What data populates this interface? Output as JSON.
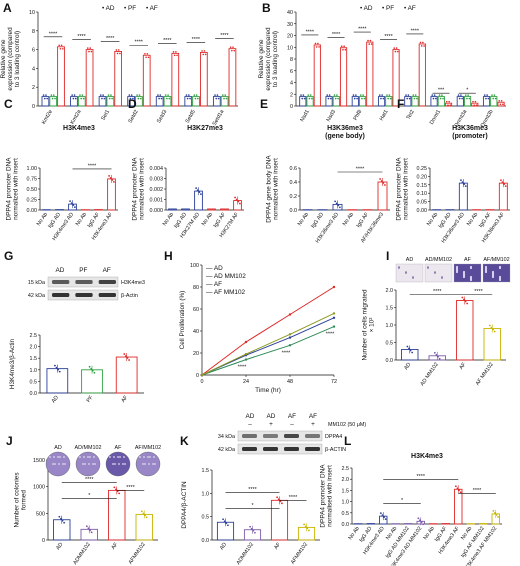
{
  "colors": {
    "AD": "#2a3f9a",
    "PF": "#2ea13f",
    "AF": "#e02828",
    "ADMM": "#7a5aa8",
    "AFMM": "#c9b400",
    "ADMM_G": "#2e8b57",
    "AFMM_G": "#8a9a20"
  },
  "legend": {
    "dot": "•",
    "items": [
      "AD",
      "PF",
      "AF"
    ]
  },
  "panels": [
    {
      "id": "A",
      "letter": "A",
      "type": "grouped_bar",
      "ylabel": "Relative gene expression (compared to 3 loading control)",
      "yticks": [
        "0",
        "2",
        "4",
        "6",
        "8",
        "10"
      ],
      "ymax": 10,
      "categories": [
        "Kmt2e",
        "Kmt2a",
        "Set1",
        "Setd2",
        "Setd3",
        "Setd5",
        "Setd1a"
      ],
      "series": [
        {
          "name": "AD",
          "color": "AD",
          "values": [
            1,
            1,
            1,
            1,
            1,
            1,
            1
          ]
        },
        {
          "name": "PF",
          "color": "PF",
          "values": [
            1,
            1,
            1,
            1,
            1,
            1,
            1
          ]
        },
        {
          "name": "AF",
          "color": "AF",
          "values": [
            6.3,
            6.0,
            5.8,
            5.4,
            5.6,
            5.7,
            6.1
          ]
        }
      ],
      "sig": [
        "****",
        "****",
        "****",
        "****",
        "****",
        "****",
        "****"
      ]
    },
    {
      "id": "B",
      "letter": "B",
      "type": "grouped_bar",
      "ylabel": "Relative gene expression (compared to 3 loading control)",
      "yticks": [
        "0",
        "2",
        "4",
        "6",
        "8",
        "10",
        "20",
        "30",
        "40"
      ],
      "ymax": 10,
      "categories": [
        "Nsd1",
        "Nsd3",
        "Phf8",
        "Hat1",
        "Tet2",
        "Dnmt1",
        "Dnmt3a",
        "Dnmt3b"
      ],
      "series": [
        {
          "name": "AD",
          "color": "AD",
          "values": [
            1,
            1,
            1,
            1,
            1,
            1,
            1,
            1
          ]
        },
        {
          "name": "PF",
          "color": "PF",
          "values": [
            1,
            1,
            1,
            1,
            1,
            1,
            1,
            1
          ]
        },
        {
          "name": "AF",
          "color": "AF",
          "values": [
            6.5,
            6.2,
            6.8,
            6.0,
            6.6,
            0.3,
            0.3,
            0.4
          ]
        }
      ],
      "sig": [
        "****",
        "****",
        "****",
        "****",
        "****",
        "***",
        "*",
        ""
      ]
    },
    {
      "id": "C",
      "letter": "C",
      "type": "bar",
      "title": "H3K4me3",
      "ylabel": "DPPA4 promoter DNA normalized with insert",
      "yticks": [
        "0.00",
        "0.25",
        "0.50",
        "0.75",
        "1.00"
      ],
      "ymax": 1,
      "categories": [
        "No Ab",
        "IgG AD",
        "H3K4me3 AD",
        "No Ab",
        "IgG AF",
        "H3K4me3 AF"
      ],
      "colors": [
        "AD",
        "AD",
        "AD",
        "AF",
        "AF",
        "AF"
      ],
      "values": [
        0.005,
        0.01,
        0.14,
        0.005,
        0.01,
        0.74
      ],
      "sig": "****"
    },
    {
      "id": "D",
      "letter": "D",
      "type": "bar",
      "title": "H3K27me3",
      "ylabel": "DPPA4 promoter DNA normalized with insert",
      "yticks": [
        "0.000",
        "0.001",
        "0.002",
        "0.003",
        "0.004"
      ],
      "ymax": 0.004,
      "categories": [
        "No Ab",
        "IgG AD",
        "H3K27M AD",
        "No Ab",
        "IgG AF",
        "H3K27M AF"
      ],
      "colors": [
        "AD",
        "AD",
        "AD",
        "AF",
        "AF",
        "AF"
      ],
      "values": [
        0.0001,
        0.0001,
        0.0018,
        0.0001,
        0.0001,
        0.0009
      ]
    },
    {
      "id": "E",
      "letter": "E",
      "type": "bar",
      "title": "H3K36me3 (gene body)",
      "ylabel": "DPPA4 gene body DNA normalized with insert",
      "yticks": [
        "0.0",
        "0.2",
        "0.4",
        "0.6"
      ],
      "ymax": 0.6,
      "categories": [
        "No Ab",
        "IgG AD",
        "H3K36me3 AD",
        "No Ab",
        "IgG AF",
        "AF/H3K36me3"
      ],
      "colors": [
        "AD",
        "AD",
        "AD",
        "AF",
        "AF",
        "AF"
      ],
      "values": [
        0.002,
        0.004,
        0.08,
        0.002,
        0.004,
        0.4
      ],
      "sig": "****"
    },
    {
      "id": "F",
      "letter": "F",
      "type": "bar",
      "title": "H3K36me3 (promoter)",
      "ylabel": "DPPA4 promoter DNA normalized with insert",
      "yticks": [
        "0.00",
        "0.05",
        "0.10",
        "0.15",
        "0.20",
        "0.25"
      ],
      "ymax": 0.25,
      "categories": [
        "No Ab",
        "IgG AD",
        "H3K36me3 AD",
        "No Ab",
        "IgG AF",
        "H3K36me3 AF"
      ],
      "colors": [
        "AD",
        "AD",
        "AD",
        "AF",
        "AF",
        "AF"
      ],
      "values": [
        0.001,
        0.002,
        0.16,
        0.001,
        0.002,
        0.16
      ]
    },
    {
      "id": "G",
      "letter": "G",
      "type": "bar",
      "ylabel": "H3K4me3/β-Actin",
      "yticks": [
        "0.0",
        "0.5",
        "1.0",
        "1.5",
        "2.0",
        "2.5"
      ],
      "ymax": 2.5,
      "categories": [
        "AD",
        "PF",
        "AF"
      ],
      "colors": [
        "AD",
        "PF",
        "AF"
      ],
      "values": [
        1.05,
        1.0,
        1.55
      ],
      "blot": {
        "lanes": [
          "AD",
          "PF",
          "AF"
        ],
        "bands": [
          {
            "kda": "15 kDa",
            "name": "H3K4me3"
          },
          {
            "kda": "42 kDa",
            "name": "β-Actin"
          }
        ]
      }
    },
    {
      "id": "H",
      "letter": "H",
      "type": "line",
      "xlabel": "Time (hr)",
      "ylabel": "Cell Proliferation (%)",
      "xticks": [
        "0",
        "24",
        "48",
        "72"
      ],
      "x": [
        0,
        24,
        48,
        72
      ],
      "yticks": [
        "0",
        "20",
        "40",
        "60",
        "80",
        "100"
      ],
      "ymax": 100,
      "series": [
        {
          "name": "AD",
          "color": "AD",
          "values": [
            0,
            18,
            34,
            52
          ]
        },
        {
          "name": "AD MM102",
          "color": "ADMM_G",
          "values": [
            0,
            14,
            27,
            44
          ]
        },
        {
          "name": "AF",
          "color": "AF",
          "values": [
            0,
            30,
            55,
            80
          ]
        },
        {
          "name": "AF MM102",
          "color": "AFMM_G",
          "values": [
            0,
            19,
            37,
            56
          ]
        }
      ],
      "sig": [
        "****",
        "****",
        "****"
      ]
    },
    {
      "id": "I",
      "letter": "I",
      "type": "bar",
      "ylabel": "Number of cells migrated × 10²",
      "yticks": [
        "0.0",
        "0.5",
        "1.0",
        "1.5",
        "2.0"
      ],
      "ymax": 2,
      "categories": [
        "AD",
        "AD MM102",
        "AF",
        "AF MM102"
      ],
      "colors": [
        "AD",
        "ADMM",
        "AF",
        "AFMM"
      ],
      "values": [
        0.3,
        0.12,
        1.7,
        0.9
      ],
      "sig": [
        "****",
        "****"
      ],
      "images": [
        "AD",
        "AD/MM102",
        "AF",
        "AF/MM102"
      ]
    },
    {
      "id": "J",
      "letter": "J",
      "type": "bar",
      "ylabel": "Number of colonies formed",
      "yticks": [
        "0",
        "500",
        "1000",
        "1500"
      ],
      "ymax": 1500,
      "categories": [
        "AD",
        "ADMM102",
        "AF",
        "AFMM102"
      ],
      "colors": [
        "AD",
        "ADMM",
        "AF",
        "AFMM"
      ],
      "values": [
        380,
        200,
        930,
        480
      ],
      "sig": [
        "*",
        "****",
        "****"
      ],
      "images": [
        "AD",
        "AD/MM102",
        "AF",
        "AF/MM102"
      ]
    },
    {
      "id": "K",
      "letter": "K",
      "type": "bar",
      "ylabel": "DPPA4/β-ACTIN",
      "yticks": [
        "0.0",
        "0.5",
        "1.0",
        "1.5"
      ],
      "ymax": 1.5,
      "categories": [
        "AD",
        "ADMM102",
        "AF",
        "AFMM102"
      ],
      "colors": [
        "AD",
        "ADMM",
        "AF",
        "AFMM"
      ],
      "values": [
        0.38,
        0.22,
        0.85,
        0.27
      ],
      "sig": [
        "*",
        "****",
        "****"
      ],
      "blot": {
        "lanes": [
          "AD",
          "AD",
          "AF",
          "AF"
        ],
        "treat": [
          "–",
          "+",
          "–",
          "+"
        ],
        "treat_label": "MM102 (50 μM)",
        "bands": [
          {
            "kda": "34 kDa",
            "name": "DPPA4"
          },
          {
            "kda": "42 kDa",
            "name": "β-ACTIN"
          }
        ]
      }
    },
    {
      "id": "L",
      "letter": "L",
      "type": "bar",
      "title": "H3K4me3",
      "ylabel": "DPPA4 promoter DNA normalised with insert",
      "yticks": [
        "0.0",
        "0.5",
        "1.0",
        "1.5",
        "2.0",
        "2.5"
      ],
      "ymax": 2.5,
      "categories": [
        "No Ab",
        "IgG AD",
        "H3K4me3 AD",
        "No Ab",
        "IgG AD MM102",
        "H3K4me3 AD MM102",
        "No Ab",
        "IgG AF",
        "H3K4me3 AF",
        "No Ab",
        "IgG AF MM102",
        "H3K4me3 AF MM102"
      ],
      "colors": [
        "AD",
        "AD",
        "AD",
        "ADMM",
        "ADMM",
        "ADMM",
        "AF",
        "AF",
        "AF",
        "AFMM",
        "AFMM",
        "AFMM"
      ],
      "values": [
        0.01,
        0.02,
        0.35,
        0.01,
        0.02,
        0.12,
        0.01,
        0.02,
        1.55,
        0.01,
        0.02,
        0.45
      ],
      "sig": [
        "*",
        "****",
        "****"
      ]
    }
  ]
}
